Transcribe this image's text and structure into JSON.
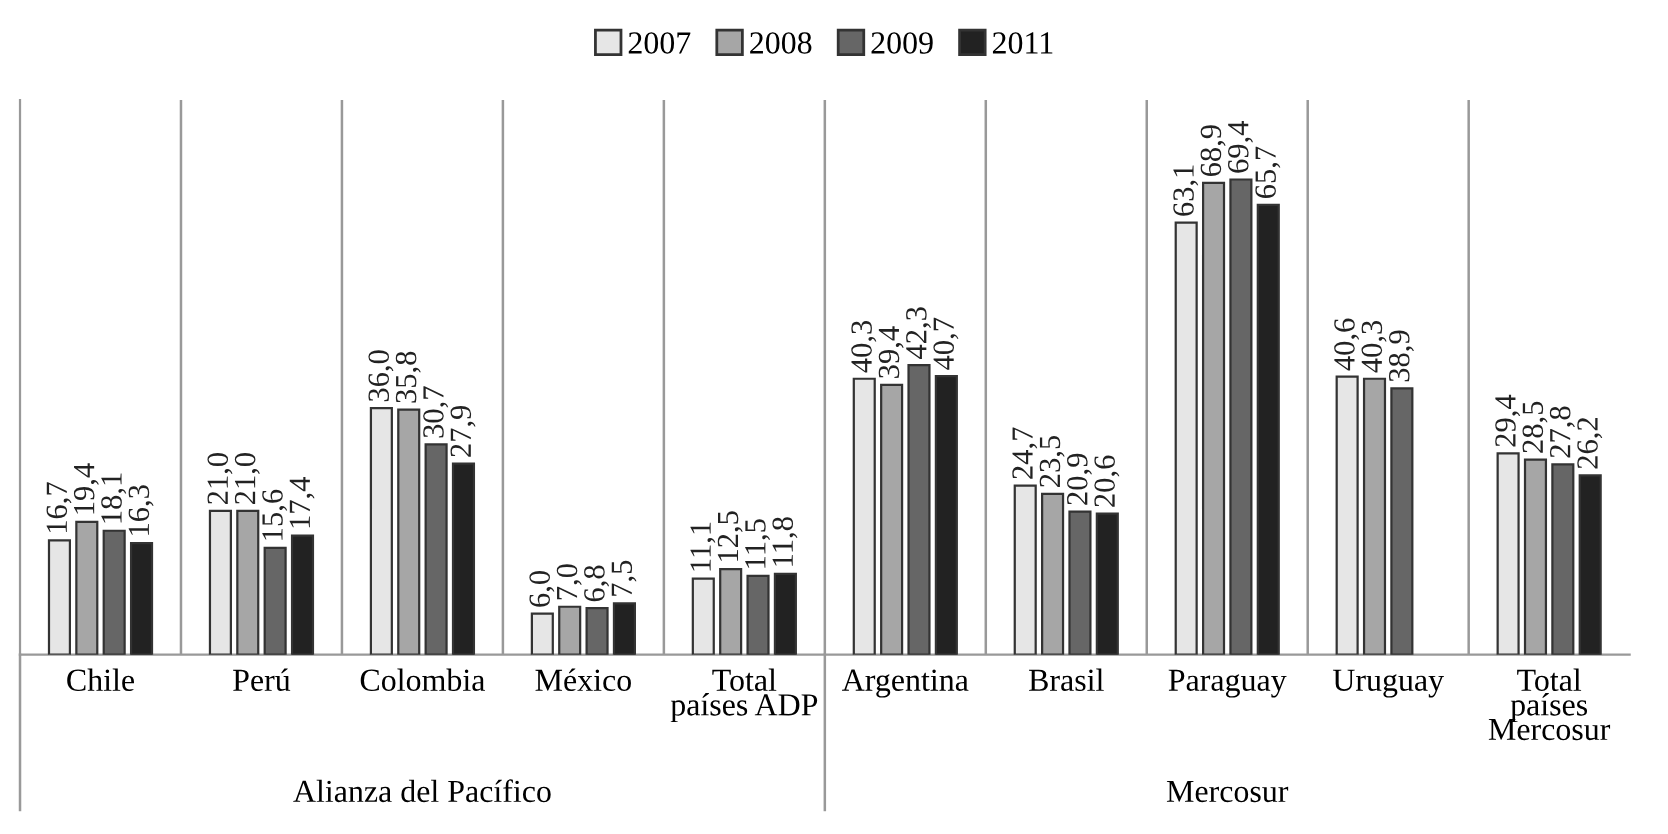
{
  "chart_data": {
    "type": "bar",
    "categories": [
      "Chile",
      "Perú",
      "Colombia",
      "México",
      "Total\npaíses ADP",
      "Argentina",
      "Brasil",
      "Paraguay",
      "Uruguay",
      "Total\npaíses\nMercosur"
    ],
    "series": [
      {
        "name": "2007",
        "color": "#e6e6e6",
        "values": [
          16.7,
          21.0,
          36.0,
          6.0,
          11.1,
          40.3,
          24.7,
          63.1,
          40.6,
          29.4
        ],
        "value_labels": [
          "16,7",
          "21,0",
          "36,0",
          "6,0",
          "11,1",
          "40,3",
          "24,7",
          "63,1",
          "40,6",
          "29,4"
        ]
      },
      {
        "name": "2008",
        "color": "#a6a6a6",
        "values": [
          19.4,
          21.0,
          35.8,
          7.0,
          12.5,
          39.4,
          23.5,
          68.9,
          40.3,
          28.5
        ],
        "value_labels": [
          "19,4",
          "21,0",
          "35,8",
          "7,0",
          "12,5",
          "39,4",
          "23,5",
          "68,9",
          "40,3",
          "28,5"
        ]
      },
      {
        "name": "2009",
        "color": "#666666",
        "values": [
          18.1,
          15.6,
          30.7,
          6.8,
          11.5,
          42.3,
          20.9,
          69.4,
          38.9,
          27.8
        ],
        "value_labels": [
          "18,1",
          "15,6",
          "30,7",
          "6,8",
          "11,5",
          "42,3",
          "20,9",
          "69,4",
          "38,9",
          "27,8"
        ]
      },
      {
        "name": "2011",
        "color": "#222222",
        "values": [
          16.3,
          17.4,
          27.9,
          7.5,
          11.8,
          40.7,
          20.6,
          65.7,
          null,
          26.2
        ],
        "value_labels": [
          "16,3",
          "17,4",
          "27,9",
          "7,5",
          "11,8",
          "40,7",
          "20,6",
          "65,7",
          null,
          "26,2"
        ]
      }
    ],
    "ylim": [
      0,
      81
    ],
    "tick_labels": "x",
    "legend": "top",
    "grid": false,
    "annotations": [
      "Alianza del Pacífico",
      "Mercosur"
    ]
  }
}
